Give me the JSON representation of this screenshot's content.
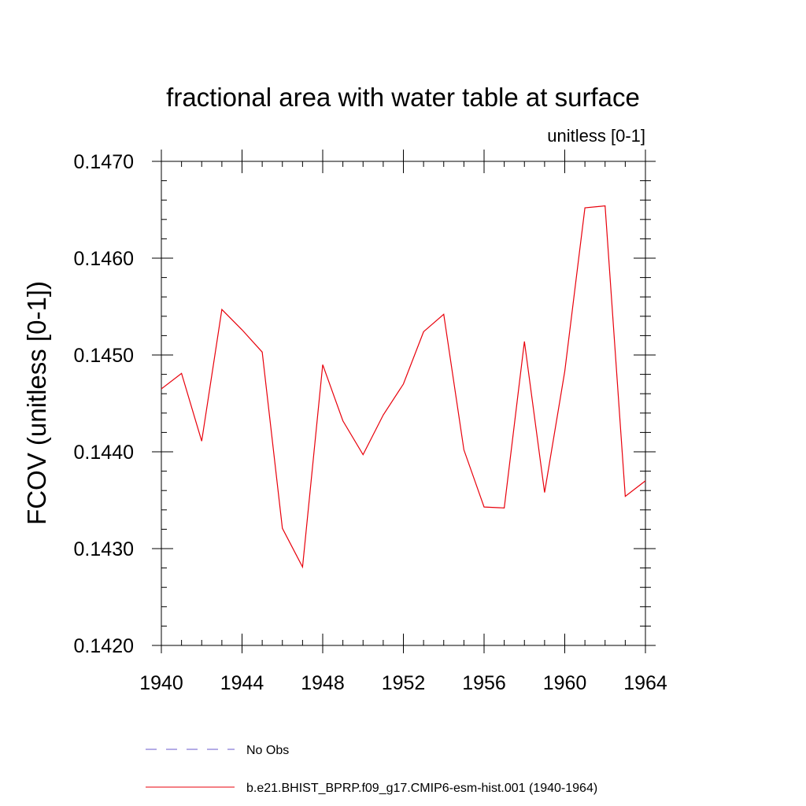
{
  "chart_data": {
    "type": "line",
    "title": "fractional area with water table at surface",
    "subtitle": "unitless [0-1]",
    "xlabel": "",
    "ylabel": "FCOV  (unitless [0-1])",
    "xlim": [
      1940,
      1964
    ],
    "ylim": [
      0.142,
      0.147
    ],
    "x_ticks": [
      1940,
      1944,
      1948,
      1952,
      1956,
      1960,
      1964
    ],
    "x_tick_labels": [
      "1940",
      "1944",
      "1948",
      "1952",
      "1956",
      "1960",
      "1964"
    ],
    "y_ticks": [
      0.142,
      0.143,
      0.144,
      0.145,
      0.146,
      0.147
    ],
    "y_tick_labels": [
      "0.1420",
      "0.1430",
      "0.1440",
      "0.1450",
      "0.1460",
      "0.1470"
    ],
    "grid": false,
    "legend_position": "bottom",
    "series": [
      {
        "name": "b.e21.BHIST_BPRP.f09_g17.CMIP6-esm-hist.001 (1940-1964)",
        "color": "#e8000b",
        "style": "solid",
        "x": [
          1940,
          1941,
          1942,
          1943,
          1944,
          1945,
          1946,
          1947,
          1948,
          1949,
          1950,
          1951,
          1952,
          1953,
          1954,
          1955,
          1956,
          1957,
          1958,
          1959,
          1960,
          1961,
          1962,
          1963,
          1964
        ],
        "y": [
          0.14465,
          0.14481,
          0.14411,
          0.14547,
          0.14526,
          0.14503,
          0.14321,
          0.14281,
          0.1449,
          0.14432,
          0.14397,
          0.14438,
          0.1447,
          0.14524,
          0.14542,
          0.14402,
          0.14343,
          0.14342,
          0.14514,
          0.14358,
          0.14483,
          0.14652,
          0.14654,
          0.14354,
          0.1437
        ]
      }
    ],
    "legend": [
      {
        "label": "No Obs",
        "color": "#6a5acd",
        "style": "dashed"
      },
      {
        "label": "b.e21.BHIST_BPRP.f09_g17.CMIP6-esm-hist.001 (1940-1964)",
        "color": "#e8000b",
        "style": "solid"
      }
    ]
  }
}
